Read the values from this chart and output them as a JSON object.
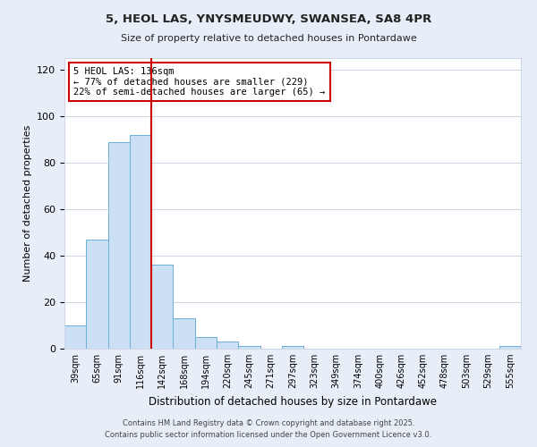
{
  "title1": "5, HEOL LAS, YNYSMEUDWY, SWANSEA, SA8 4PR",
  "title2": "Size of property relative to detached houses in Pontardawe",
  "xlabel": "Distribution of detached houses by size in Pontardawe",
  "ylabel": "Number of detached properties",
  "bar_labels": [
    "39sqm",
    "65sqm",
    "91sqm",
    "116sqm",
    "142sqm",
    "168sqm",
    "194sqm",
    "220sqm",
    "245sqm",
    "271sqm",
    "297sqm",
    "323sqm",
    "349sqm",
    "374sqm",
    "400sqm",
    "426sqm",
    "452sqm",
    "478sqm",
    "503sqm",
    "529sqm",
    "555sqm"
  ],
  "bar_values": [
    10,
    47,
    89,
    92,
    36,
    13,
    5,
    3,
    1,
    0,
    1,
    0,
    0,
    0,
    0,
    0,
    0,
    0,
    0,
    0,
    1
  ],
  "bar_color": "#cce0f5",
  "bar_edge_color": "#6aaed6",
  "vline_color": "#cc0000",
  "annotation_title": "5 HEOL LAS: 136sqm",
  "annotation_line1": "← 77% of detached houses are smaller (229)",
  "annotation_line2": "22% of semi-detached houses are larger (65) →",
  "annotation_box_color": "#ffffff",
  "annotation_box_edge": "#cc0000",
  "ylim": [
    0,
    125
  ],
  "yticks": [
    0,
    20,
    40,
    60,
    80,
    100,
    120
  ],
  "footnote1": "Contains HM Land Registry data © Crown copyright and database right 2025.",
  "footnote2": "Contains public sector information licensed under the Open Government Licence v3.0.",
  "bg_color": "#e8eef8",
  "plot_bg_color": "#ffffff",
  "grid_color": "#d0d8e8"
}
